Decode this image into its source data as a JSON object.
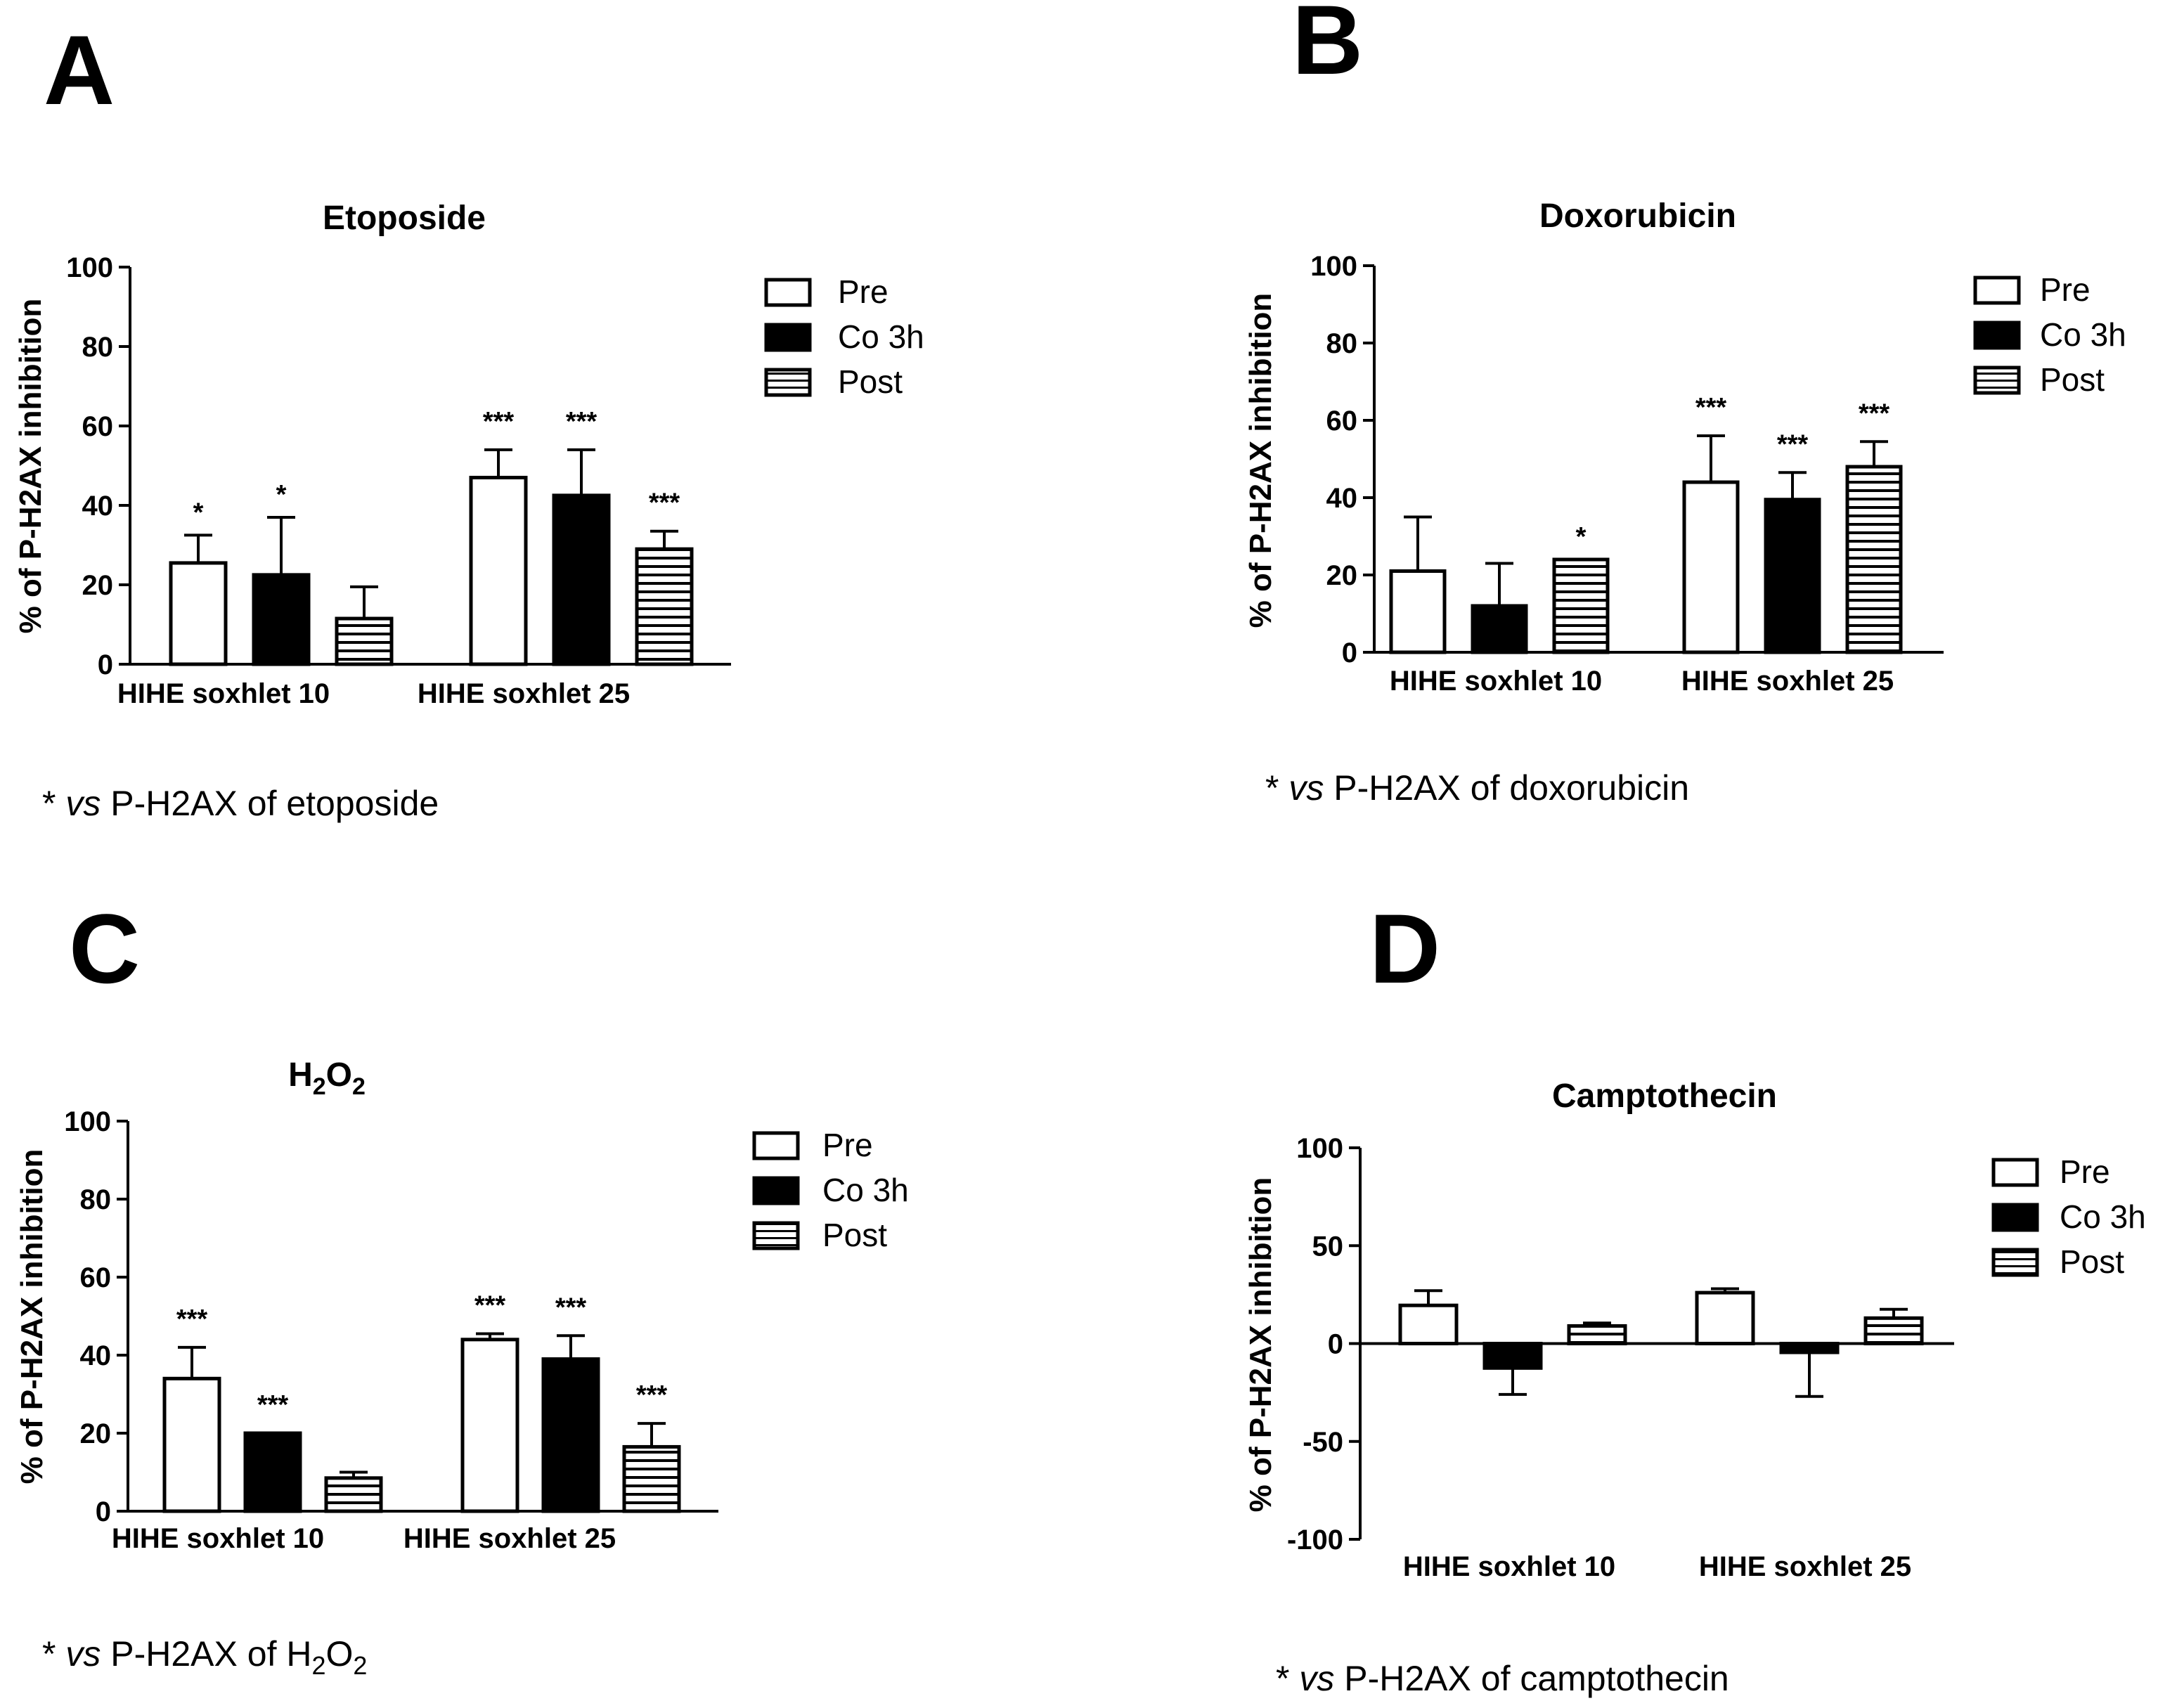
{
  "colors": {
    "ink": "#000000",
    "background": "#ffffff"
  },
  "chart_data": [
    {
      "panel": "A",
      "type": "bar",
      "title": "Etoposide",
      "title_sub": "",
      "title_tail": "",
      "ylabel": "% of P-H2AX inhibition",
      "xlabel": "",
      "ylim": [
        0,
        100
      ],
      "yticks": [
        0,
        20,
        40,
        60,
        80,
        100
      ],
      "categories": [
        "HIHE soxhlet 10",
        "HIHE soxhlet 25"
      ],
      "legend": {
        "position": "top-right",
        "entries": [
          "Pre",
          "Co 3h",
          "Post"
        ]
      },
      "series": [
        {
          "name": "Pre",
          "style": "open",
          "values": [
            25.5,
            47
          ],
          "errors": [
            7,
            7
          ],
          "significance": [
            "*",
            "***"
          ]
        },
        {
          "name": "Co 3h",
          "style": "filled",
          "values": [
            22.5,
            42.5
          ],
          "errors": [
            14.5,
            11.5
          ],
          "significance": [
            "*",
            "***"
          ]
        },
        {
          "name": "Post",
          "style": "striped",
          "values": [
            11.5,
            29
          ],
          "errors": [
            8,
            4.5
          ],
          "significance": [
            "",
            "***"
          ]
        }
      ],
      "note": {
        "star": "* ",
        "italic": "vs",
        "text": " P-H2AX of etoposide",
        "sub": "",
        "tail": ""
      }
    },
    {
      "panel": "B",
      "type": "bar",
      "title": "Doxorubicin",
      "title_sub": "",
      "title_tail": "",
      "ylabel": "% of P-H2AX inhibition",
      "xlabel": "",
      "ylim": [
        0,
        100
      ],
      "yticks": [
        0,
        20,
        40,
        60,
        80,
        100
      ],
      "categories": [
        "HIHE soxhlet 10",
        "HIHE soxhlet 25"
      ],
      "legend": {
        "position": "top-right",
        "entries": [
          "Pre",
          "Co 3h",
          "Post"
        ]
      },
      "series": [
        {
          "name": "Pre",
          "style": "open",
          "values": [
            21,
            44
          ],
          "errors": [
            14,
            12
          ],
          "significance": [
            "",
            "***"
          ]
        },
        {
          "name": "Co 3h",
          "style": "filled",
          "values": [
            12,
            39.5
          ],
          "errors": [
            11,
            7
          ],
          "significance": [
            "",
            "***"
          ]
        },
        {
          "name": "Post",
          "style": "striped",
          "values": [
            24,
            48
          ],
          "errors": [
            0,
            6.5
          ],
          "significance": [
            "*",
            "***"
          ]
        }
      ],
      "note": {
        "star": "* ",
        "italic": "vs",
        "text": " P-H2AX of doxorubicin",
        "sub": "",
        "tail": ""
      }
    },
    {
      "panel": "C",
      "type": "bar",
      "title": "H",
      "title_sub": "2",
      "title_tail": "O2",
      "ylabel": "% of P-H2AX inhibition",
      "xlabel": "",
      "ylim": [
        0,
        100
      ],
      "yticks": [
        0,
        20,
        40,
        60,
        80,
        100
      ],
      "categories": [
        "HIHE soxhlet 10",
        "HIHE soxhlet 25"
      ],
      "legend": {
        "position": "top-right",
        "entries": [
          "Pre",
          "Co 3h",
          "Post"
        ]
      },
      "series": [
        {
          "name": "Pre",
          "style": "open",
          "values": [
            34,
            44
          ],
          "errors": [
            8,
            1.5
          ],
          "significance": [
            "***",
            "***"
          ]
        },
        {
          "name": "Co 3h",
          "style": "filled",
          "values": [
            20,
            39
          ],
          "errors": [
            0,
            6
          ],
          "significance": [
            "***",
            "***"
          ]
        },
        {
          "name": "Post",
          "style": "striped",
          "values": [
            8.5,
            16.5
          ],
          "errors": [
            1.5,
            6
          ],
          "significance": [
            "",
            "***"
          ]
        }
      ],
      "note": {
        "star": "* ",
        "italic": "vs",
        "text": " P-H2AX of H",
        "sub": "2",
        "tail": "O2"
      }
    },
    {
      "panel": "D",
      "type": "bar",
      "title": "Camptothecin",
      "title_sub": "",
      "title_tail": "",
      "ylabel": "% of P-H2AX inhibition",
      "xlabel": "",
      "ylim": [
        -100,
        100
      ],
      "yticks": [
        -100,
        -50,
        0,
        50,
        100
      ],
      "categories": [
        "HIHE soxhlet 10",
        "HIHE soxhlet 25"
      ],
      "legend": {
        "position": "top-right",
        "entries": [
          "Pre",
          "Co 3h",
          "Post"
        ]
      },
      "series": [
        {
          "name": "Pre",
          "style": "open",
          "values": [
            19.5,
            26
          ],
          "errors": [
            7.5,
            2
          ],
          "significance": [
            "",
            ""
          ]
        },
        {
          "name": "Co 3h",
          "style": "filled",
          "values": [
            -12.5,
            -4.5
          ],
          "errors": [
            13.5,
            22.5
          ],
          "significance": [
            "",
            ""
          ]
        },
        {
          "name": "Post",
          "style": "striped",
          "values": [
            9,
            13
          ],
          "errors": [
            1.5,
            4.5
          ],
          "significance": [
            "",
            ""
          ]
        }
      ],
      "note": {
        "star": "* ",
        "italic": "vs",
        "text": " P-H2AX of camptothecin",
        "sub": "",
        "tail": ""
      }
    }
  ]
}
